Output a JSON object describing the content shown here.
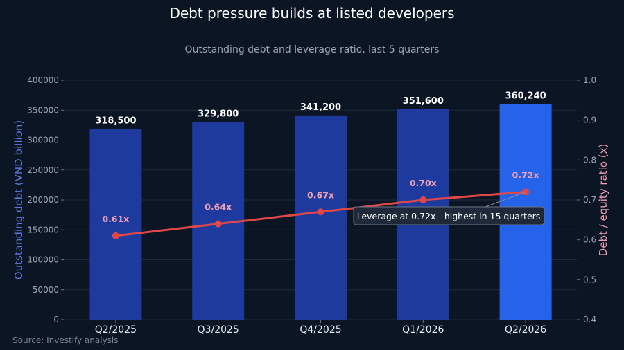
{
  "chart_data": {
    "type": "bar",
    "title": "Debt pressure builds at listed developers",
    "subtitle": "Outstanding debt and leverage ratio, last 5 quarters",
    "source": "Source: Investify analysis",
    "categories": [
      "Q2/2025",
      "Q3/2025",
      "Q4/2025",
      "Q1/2026",
      "Q2/2026"
    ],
    "bar_series": {
      "values": [
        318500,
        329800,
        341200,
        351600,
        360240
      ],
      "labels": [
        "318,500",
        "329,800",
        "341,200",
        "351,600",
        "360,240"
      ],
      "color": "#1e3a9e",
      "highlight_color": "#2563eb",
      "highlight_index": 4
    },
    "line_series": {
      "values": [
        0.61,
        0.64,
        0.67,
        0.7,
        0.72
      ],
      "labels": [
        "0.61x",
        "0.64x",
        "0.67x",
        "0.70x",
        "0.72x"
      ],
      "color": "#e04848",
      "label_color": "#f0a0b4"
    },
    "y_left": {
      "label": "Outstanding debt (VND billion)",
      "ylim": [
        0,
        400000
      ],
      "ticks": [
        0,
        50000,
        100000,
        150000,
        200000,
        250000,
        300000,
        350000,
        400000
      ],
      "tick_labels": [
        "0",
        "50000",
        "100000",
        "150000",
        "200000",
        "250000",
        "300000",
        "350000",
        "400000"
      ],
      "color": "#5a7be0"
    },
    "y_right": {
      "label": "Debt / equity ratio (x)",
      "ylim": [
        0.4,
        1.0
      ],
      "ticks": [
        0.4,
        0.5,
        0.6,
        0.7,
        0.8,
        0.9,
        1.0
      ],
      "tick_labels": [
        "0.4",
        "0.5",
        "0.6",
        "0.7",
        "0.8",
        "0.9",
        "1.0"
      ],
      "color": "#f0a0b4"
    },
    "annotation": {
      "text": "Leverage at 0.72x - highest in 15 quarters",
      "target_index": 4
    },
    "grid": true
  }
}
